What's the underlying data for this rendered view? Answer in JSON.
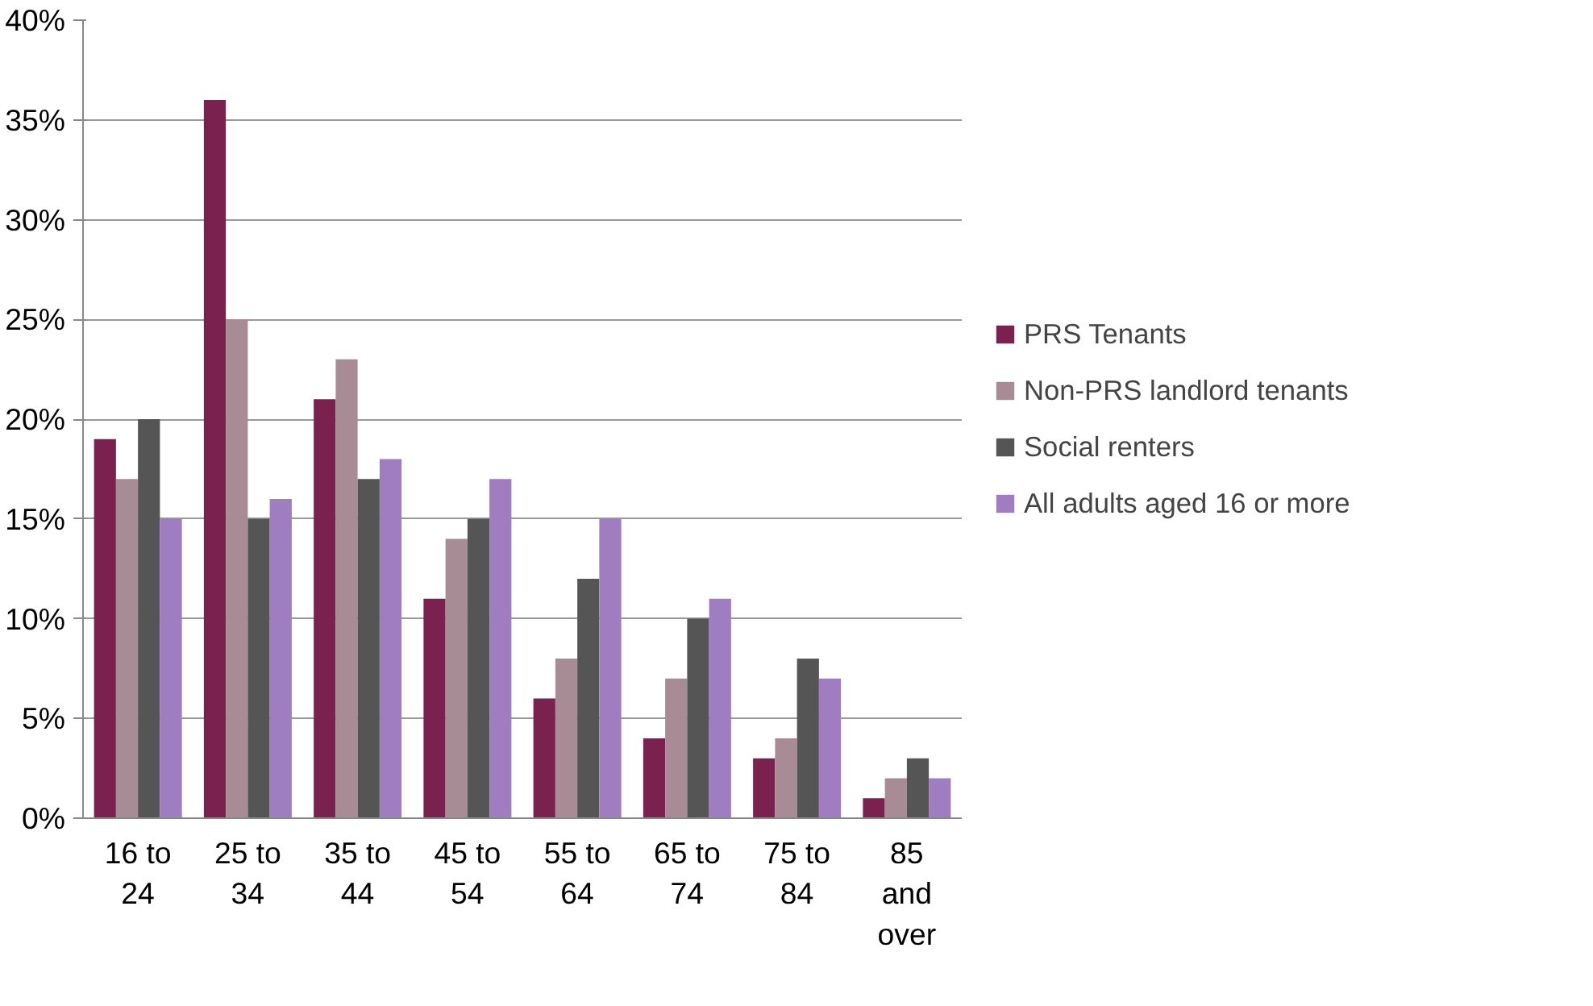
{
  "chart_data": {
    "type": "bar",
    "categories": [
      "16 to\n24",
      "25 to\n34",
      "35 to\n44",
      "45 to\n54",
      "55 to\n64",
      "65 to\n74",
      "75 to\n84",
      "85\nand\nover"
    ],
    "series": [
      {
        "name": "PRS Tenants",
        "color": "#7b2150",
        "values": [
          19,
          36,
          21,
          11,
          6,
          4,
          3,
          1
        ]
      },
      {
        "name": "Non-PRS landlord tenants",
        "color": "#a88c95",
        "values": [
          17,
          25,
          23,
          14,
          8,
          7,
          4,
          2
        ]
      },
      {
        "name": "Social renters",
        "color": "#555555",
        "values": [
          20,
          15,
          17,
          15,
          12,
          10,
          8,
          3
        ]
      },
      {
        "name": "All adults aged 16 or more",
        "color": "#a07cc0",
        "values": [
          15,
          16,
          18,
          17,
          15,
          11,
          7,
          2
        ]
      }
    ],
    "ylim": [
      0,
      40
    ],
    "yticks": [
      {
        "value": 0,
        "label": "0%"
      },
      {
        "value": 5,
        "label": "5%"
      },
      {
        "value": 10,
        "label": "10%"
      },
      {
        "value": 15,
        "label": "15%"
      },
      {
        "value": 20,
        "label": "20%"
      },
      {
        "value": 25,
        "label": "25%"
      },
      {
        "value": 30,
        "label": "30%"
      },
      {
        "value": 35,
        "label": "35%"
      },
      {
        "value": 40,
        "label": "40%"
      }
    ],
    "grid": "y",
    "legend": "right"
  }
}
